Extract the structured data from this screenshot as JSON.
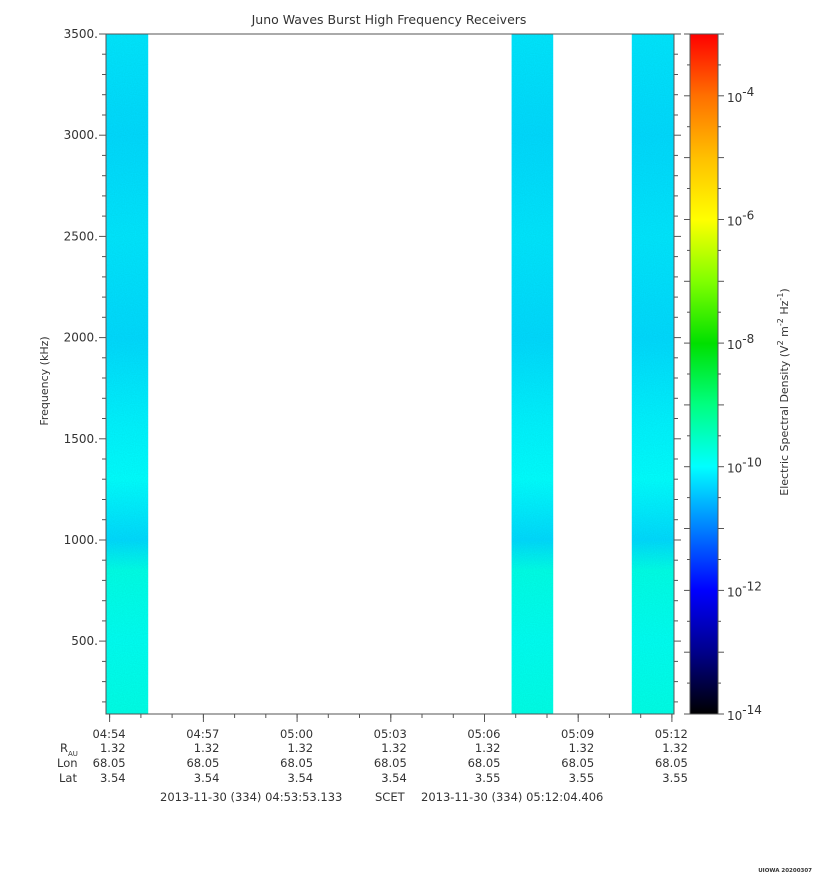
{
  "chart_data": {
    "type": "heatmap",
    "title": "Juno Waves Burst High Frequency Receivers",
    "ylabel": "Frequency (kHz)",
    "ylim": [
      140,
      3500
    ],
    "yticks": [
      {
        "value": 500,
        "label": "500."
      },
      {
        "value": 1000,
        "label": "1000."
      },
      {
        "value": 1500,
        "label": "1500."
      },
      {
        "value": 2000,
        "label": "2000."
      },
      {
        "value": 2500,
        "label": "2500."
      },
      {
        "value": 3000,
        "label": "3000."
      },
      {
        "value": 3500,
        "label": "3500."
      }
    ],
    "xlim": [
      "04:53:53",
      "05:12:04"
    ],
    "xticks": [
      {
        "time": "04:54",
        "r_au": "1.32",
        "lon": "68.05",
        "lat": "3.54"
      },
      {
        "time": "04:57",
        "r_au": "1.32",
        "lon": "68.05",
        "lat": "3.54"
      },
      {
        "time": "05:00",
        "r_au": "1.32",
        "lon": "68.05",
        "lat": "3.54"
      },
      {
        "time": "05:03",
        "r_au": "1.32",
        "lon": "68.05",
        "lat": "3.54"
      },
      {
        "time": "05:06",
        "r_au": "1.32",
        "lon": "68.05",
        "lat": "3.55"
      },
      {
        "time": "05:09",
        "r_au": "1.32",
        "lon": "68.05",
        "lat": "3.55"
      },
      {
        "time": "05:12",
        "r_au": "1.32",
        "lon": "68.05",
        "lat": "3.55"
      }
    ],
    "data_blocks": [
      {
        "start": "04:53:53",
        "end": "04:55:14"
      },
      {
        "start": "05:06:52",
        "end": "05:08:12"
      },
      {
        "start": "05:10:43",
        "end": "05:12:04"
      }
    ],
    "spectral_density_exponent_by_frequency": [
      {
        "freq_khz": 140,
        "log10_v2_m2_hz": -9.8
      },
      {
        "freq_khz": 500,
        "log10_v2_m2_hz": -9.9
      },
      {
        "freq_khz": 850,
        "log10_v2_m2_hz": -9.8
      },
      {
        "freq_khz": 1000,
        "log10_v2_m2_hz": -10.3
      },
      {
        "freq_khz": 1300,
        "log10_v2_m2_hz": -10.0
      },
      {
        "freq_khz": 1600,
        "log10_v2_m2_hz": -10.1
      },
      {
        "freq_khz": 2000,
        "log10_v2_m2_hz": -10.3
      },
      {
        "freq_khz": 2500,
        "log10_v2_m2_hz": -10.2
      },
      {
        "freq_khz": 3000,
        "log10_v2_m2_hz": -10.3
      },
      {
        "freq_khz": 3500,
        "log10_v2_m2_hz": -10.2
      }
    ],
    "colorbar": {
      "label_prefix": "Electric Spectral Density (V",
      "label_sup1": "2",
      "label_mid": " m",
      "label_sup2": "-2",
      "label_mid2": " Hz",
      "label_sup3": "-1",
      "label_suffix": ")",
      "range_exponent": [
        -14,
        -3
      ],
      "ticks": [
        {
          "exp": -4,
          "base": "10",
          "label": "-4"
        },
        {
          "exp": -6,
          "base": "10",
          "label": "-6"
        },
        {
          "exp": -8,
          "base": "10",
          "label": "-8"
        },
        {
          "exp": -10,
          "base": "10",
          "label": "-10"
        },
        {
          "exp": -12,
          "base": "10",
          "label": "-12"
        },
        {
          "exp": -14,
          "base": "10",
          "label": "-14"
        }
      ],
      "colors": [
        "#000000",
        "#00008b",
        "#0000ff",
        "#0080ff",
        "#00ffff",
        "#00ff80",
        "#00e000",
        "#80ff00",
        "#ffff00",
        "#ffc000",
        "#ff7000",
        "#ff0000"
      ]
    },
    "ephemeris_labels": {
      "r": "R",
      "r_sub": "AU",
      "lon": "Lon",
      "lat": "Lat"
    },
    "time_range": {
      "start": "2013-11-30 (334) 04:53:53.133",
      "scet": "SCET",
      "end": "2013-11-30 (334) 05:12:04.406"
    },
    "footer": "UIOWA 20200307"
  }
}
